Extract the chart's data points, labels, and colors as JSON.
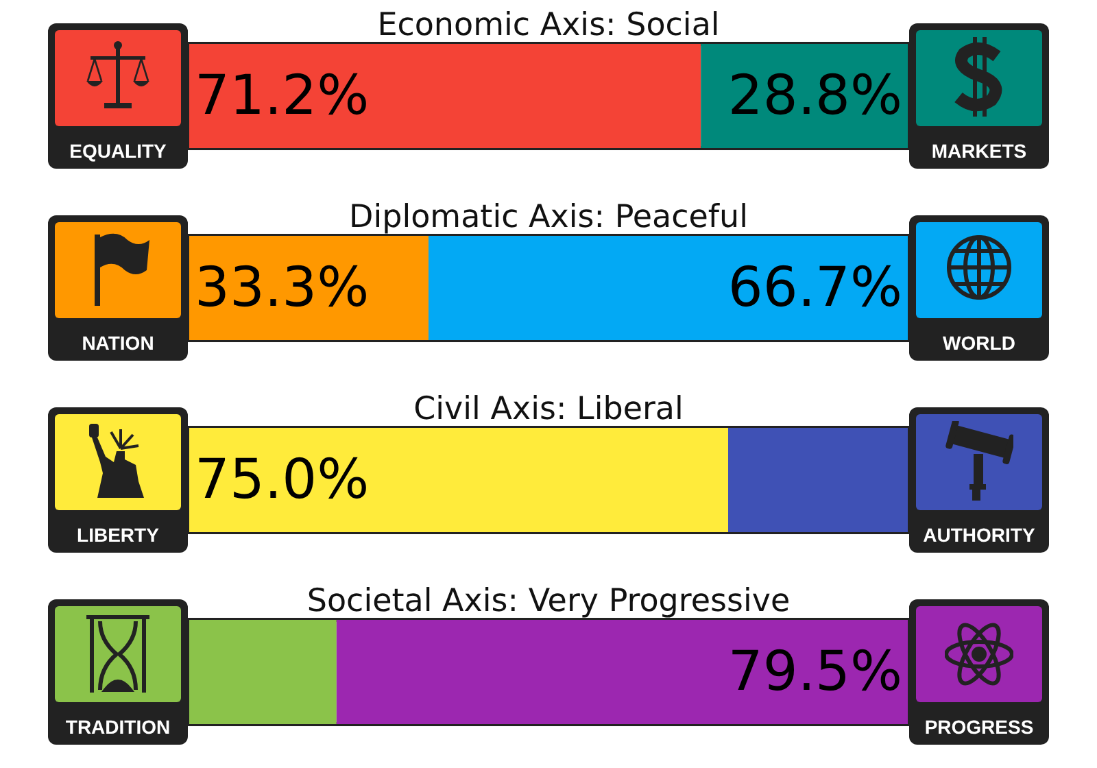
{
  "chart_data": [
    {
      "type": "bar",
      "title": "Economic Axis: Social",
      "orientation": "horizontal",
      "stacked": true,
      "categories": [
        null
      ],
      "xlim": [
        0,
        100
      ],
      "tick_labels": false,
      "series": [
        {
          "name": "EQUALITY",
          "color": "#f44336",
          "values": [
            71.2
          ],
          "value_labels": [
            "71.2%"
          ]
        },
        {
          "name": "MARKETS",
          "color": "#00897b",
          "values": [
            28.8
          ],
          "value_labels": [
            "28.8%"
          ]
        }
      ]
    },
    {
      "type": "bar",
      "title": "Diplomatic Axis: Peaceful",
      "orientation": "horizontal",
      "stacked": true,
      "categories": [
        null
      ],
      "xlim": [
        0,
        100
      ],
      "tick_labels": false,
      "series": [
        {
          "name": "NATION",
          "color": "#ff9800",
          "values": [
            33.3
          ],
          "value_labels": [
            "33.3%"
          ]
        },
        {
          "name": "WORLD",
          "color": "#03a9f4",
          "values": [
            66.7
          ],
          "value_labels": [
            "66.7%"
          ]
        }
      ]
    },
    {
      "type": "bar",
      "title": "Civil Axis: Liberal",
      "orientation": "horizontal",
      "stacked": true,
      "categories": [
        null
      ],
      "xlim": [
        0,
        100
      ],
      "tick_labels": false,
      "series": [
        {
          "name": "LIBERTY",
          "color": "#ffeb3b",
          "values": [
            75.0
          ],
          "value_labels": [
            "75.0%"
          ]
        },
        {
          "name": "AUTHORITY",
          "color": "#3f51b5",
          "values": [
            25.0
          ],
          "value_labels": [
            null
          ]
        }
      ]
    },
    {
      "type": "bar",
      "title": "Societal Axis: Very Progressive",
      "orientation": "horizontal",
      "stacked": true,
      "categories": [
        null
      ],
      "xlim": [
        0,
        100
      ],
      "tick_labels": false,
      "series": [
        {
          "name": "TRADITION",
          "color": "#8bc34a",
          "values": [
            20.5
          ],
          "value_labels": [
            null
          ]
        },
        {
          "name": "PROGRESS",
          "color": "#9c27b0",
          "values": [
            79.5
          ],
          "value_labels": [
            "79.5%"
          ]
        }
      ]
    }
  ]
}
